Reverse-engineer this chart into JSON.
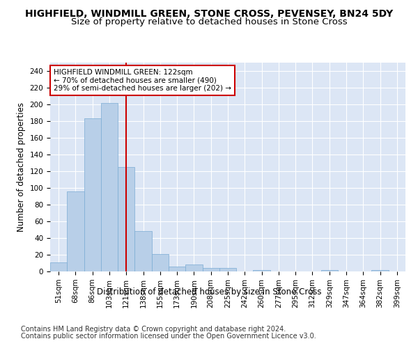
{
  "title": "HIGHFIELD, WINDMILL GREEN, STONE CROSS, PEVENSEY, BN24 5DY",
  "subtitle": "Size of property relative to detached houses in Stone Cross",
  "xlabel": "Distribution of detached houses by size in Stone Cross",
  "ylabel": "Number of detached properties",
  "bar_color": "#b8cfe8",
  "bar_edge_color": "#7aacd4",
  "background_color": "#dce6f5",
  "grid_color": "#ffffff",
  "categories": [
    "51sqm",
    "68sqm",
    "86sqm",
    "103sqm",
    "121sqm",
    "138sqm",
    "155sqm",
    "173sqm",
    "190sqm",
    "208sqm",
    "225sqm",
    "242sqm",
    "260sqm",
    "277sqm",
    "295sqm",
    "312sqm",
    "329sqm",
    "347sqm",
    "364sqm",
    "382sqm",
    "399sqm"
  ],
  "values": [
    11,
    96,
    183,
    202,
    125,
    48,
    21,
    6,
    8,
    4,
    4,
    0,
    2,
    0,
    0,
    0,
    2,
    0,
    0,
    2,
    0
  ],
  "vline_x": 4,
  "vline_color": "#cc0000",
  "annotation_line1": "HIGHFIELD WINDMILL GREEN: 122sqm",
  "annotation_line2": "← 70% of detached houses are smaller (490)",
  "annotation_line3": "29% of semi-detached houses are larger (202) →",
  "annotation_box_color": "#ffffff",
  "annotation_box_edge": "#cc0000",
  "ylim": [
    0,
    250
  ],
  "yticks": [
    0,
    20,
    40,
    60,
    80,
    100,
    120,
    140,
    160,
    180,
    200,
    220,
    240
  ],
  "footnote1": "Contains HM Land Registry data © Crown copyright and database right 2024.",
  "footnote2": "Contains public sector information licensed under the Open Government Licence v3.0.",
  "title_fontsize": 10,
  "subtitle_fontsize": 9.5,
  "xlabel_fontsize": 8.5,
  "ylabel_fontsize": 8.5,
  "tick_fontsize": 7.5,
  "annotation_fontsize": 7.5,
  "footnote_fontsize": 7
}
